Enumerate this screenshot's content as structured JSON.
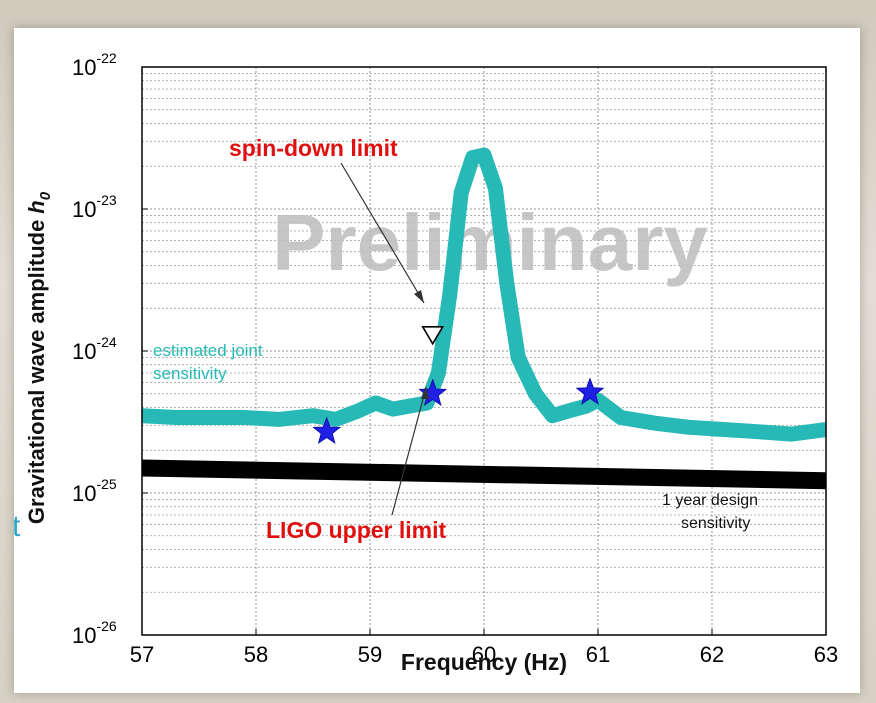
{
  "chart_data": {
    "type": "line",
    "xlabel": "Frequency (Hz)",
    "ylabel": "Gravitational wave amplitude",
    "ylabel_symbol": "h",
    "ylabel_subscript": "0",
    "xlim": [
      57,
      63
    ],
    "ylim": [
      1e-26,
      1e-22
    ],
    "yscale": "log",
    "grid": true,
    "x_ticks": [
      "57",
      "58",
      "59",
      "60",
      "61",
      "62",
      "63"
    ],
    "y_ticks": [
      {
        "base": "10",
        "exp": "-22"
      },
      {
        "base": "10",
        "exp": "-23"
      },
      {
        "base": "10",
        "exp": "-24"
      },
      {
        "base": "10",
        "exp": "-25"
      },
      {
        "base": "10",
        "exp": "-26"
      }
    ],
    "watermark": "Preliminary",
    "series": [
      {
        "label": "estimated joint sensitivity",
        "label_lines": [
          "estimated joint",
          "sensitivity"
        ],
        "color": "#27b9b5",
        "x": [
          57.0,
          57.3,
          57.6,
          57.9,
          58.2,
          58.5,
          58.7,
          58.9,
          59.05,
          59.2,
          59.35,
          59.5,
          59.6,
          59.7,
          59.8,
          59.9,
          60.0,
          60.1,
          60.2,
          60.3,
          60.45,
          60.6,
          60.75,
          60.9,
          61.0,
          61.2,
          61.5,
          61.8,
          62.1,
          62.4,
          62.7,
          63.0
        ],
        "y": [
          3.5e-25,
          3.4e-25,
          3.4e-25,
          3.4e-25,
          3.3e-25,
          3.5e-25,
          3.3e-25,
          3.8e-25,
          4.3e-25,
          3.9e-25,
          4.1e-25,
          4.3e-25,
          7e-25,
          2.5e-24,
          1.3e-23,
          2.3e-23,
          2.4e-23,
          1.4e-23,
          3e-24,
          9e-25,
          5e-25,
          3.5e-25,
          3.8e-25,
          4.1e-25,
          4.5e-25,
          3.4e-25,
          3.1e-25,
          2.9e-25,
          2.8e-25,
          2.7e-25,
          2.6e-25,
          2.8e-25
        ]
      },
      {
        "label": "1 year design sensitivity",
        "label_lines": [
          "1 year design",
          "sensitivity"
        ],
        "color": "#000000",
        "x": [
          57,
          63
        ],
        "y": [
          1.5e-25,
          1.22e-25
        ]
      }
    ],
    "markers": [
      {
        "name": "LIGO upper limit",
        "shape": "star",
        "color": "#1f1fe6",
        "points": [
          [
            58.62,
            2.7e-25
          ],
          [
            59.55,
            5e-25
          ],
          [
            60.93,
            5.1e-25
          ]
        ]
      },
      {
        "name": "spin-down limit",
        "shape": "triangle-down",
        "color": "#000000",
        "points": [
          [
            59.55,
            1.3e-24
          ]
        ]
      }
    ],
    "annotations": [
      {
        "text": "spin-down limit",
        "color": "#e01010"
      },
      {
        "text": "LIGO upper limit",
        "color": "#e01010"
      }
    ]
  },
  "page": {
    "side_text": "t"
  }
}
